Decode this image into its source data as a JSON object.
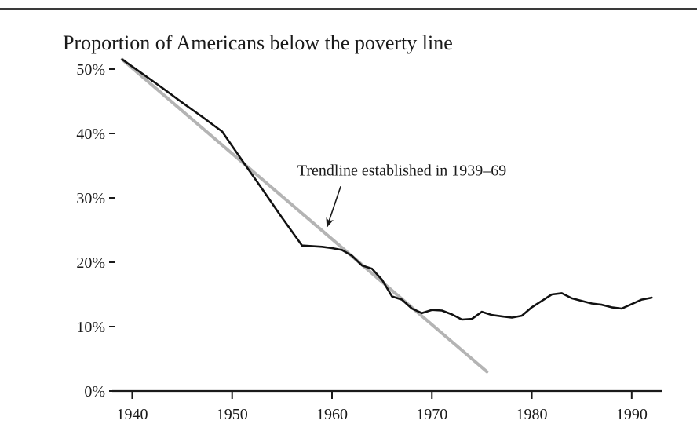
{
  "chart_data": {
    "type": "line",
    "title": "Proportion of Americans below the poverty line",
    "xlabel": "",
    "ylabel": "",
    "xlim": [
      1938,
      1993
    ],
    "ylim": [
      0,
      52
    ],
    "xticks": [
      1940,
      1950,
      1960,
      1970,
      1980,
      1990
    ],
    "xtick_labels": [
      "1940",
      "1950",
      "1960",
      "1970",
      "1980",
      "1990"
    ],
    "yticks": [
      0,
      10,
      20,
      30,
      40,
      50
    ],
    "ytick_labels": [
      "0%",
      "10%",
      "20%",
      "30%",
      "40%",
      "50%"
    ],
    "grid": false,
    "series": [
      {
        "role": "actual",
        "color": "#111111",
        "x": [
          1939,
          1941,
          1943,
          1945,
          1947,
          1949,
          1951,
          1953,
          1955,
          1957,
          1959,
          1960,
          1961,
          1962,
          1963,
          1964,
          1965,
          1966,
          1967,
          1968,
          1969,
          1970,
          1971,
          1972,
          1973,
          1974,
          1975,
          1976,
          1977,
          1978,
          1979,
          1980,
          1981,
          1982,
          1983,
          1984,
          1985,
          1986,
          1987,
          1988,
          1989,
          1990,
          1991,
          1992
        ],
        "y": [
          51.5,
          49.3,
          47.1,
          44.8,
          42.6,
          40.3,
          35.8,
          31.4,
          26.9,
          22.6,
          22.4,
          22.2,
          21.9,
          21.0,
          19.5,
          19.0,
          17.3,
          14.7,
          14.2,
          12.8,
          12.1,
          12.6,
          12.5,
          11.9,
          11.1,
          11.2,
          12.3,
          11.8,
          11.6,
          11.4,
          11.7,
          13.0,
          14.0,
          15.0,
          15.2,
          14.4,
          14.0,
          13.6,
          13.4,
          13.0,
          12.8,
          13.5,
          14.2,
          14.5
        ]
      },
      {
        "role": "trendline",
        "color": "#b4b4b4",
        "x": [
          1939,
          1975.5
        ],
        "y": [
          51.5,
          3.0
        ]
      }
    ],
    "annotations": [
      {
        "text": "Trendline established in 1939–69",
        "x": 1967,
        "y": 33.5,
        "arrow_to": [
          1959.5,
          25.5
        ]
      }
    ]
  }
}
